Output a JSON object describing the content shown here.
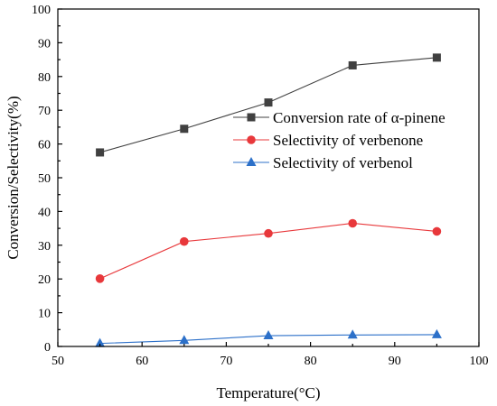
{
  "chart_data": {
    "type": "line",
    "title": "",
    "xlabel": "Temperature(°C)",
    "ylabel": "Conversion/Selectivity(%)",
    "xlim": [
      50,
      100
    ],
    "ylim": [
      0,
      100
    ],
    "x_ticks": [
      50,
      60,
      70,
      80,
      90,
      100
    ],
    "y_ticks": [
      0,
      10,
      20,
      30,
      40,
      50,
      60,
      70,
      80,
      90,
      100
    ],
    "grid": false,
    "legend_position": "upper-right",
    "x": [
      55,
      65,
      75,
      85,
      95
    ],
    "series": [
      {
        "name": "Conversion rate of α-pinene",
        "values": [
          57.5,
          64.5,
          72.3,
          83.3,
          85.6
        ],
        "color": "#404040",
        "marker": "square"
      },
      {
        "name": "Selectivity of verbenone",
        "values": [
          20.1,
          31.1,
          33.5,
          36.5,
          34.1
        ],
        "color": "#e8383b",
        "marker": "circle"
      },
      {
        "name": "Selectivity of verbenol",
        "values": [
          0.9,
          1.8,
          3.2,
          3.4,
          3.5
        ],
        "color": "#2c70c9",
        "marker": "triangle"
      }
    ]
  }
}
